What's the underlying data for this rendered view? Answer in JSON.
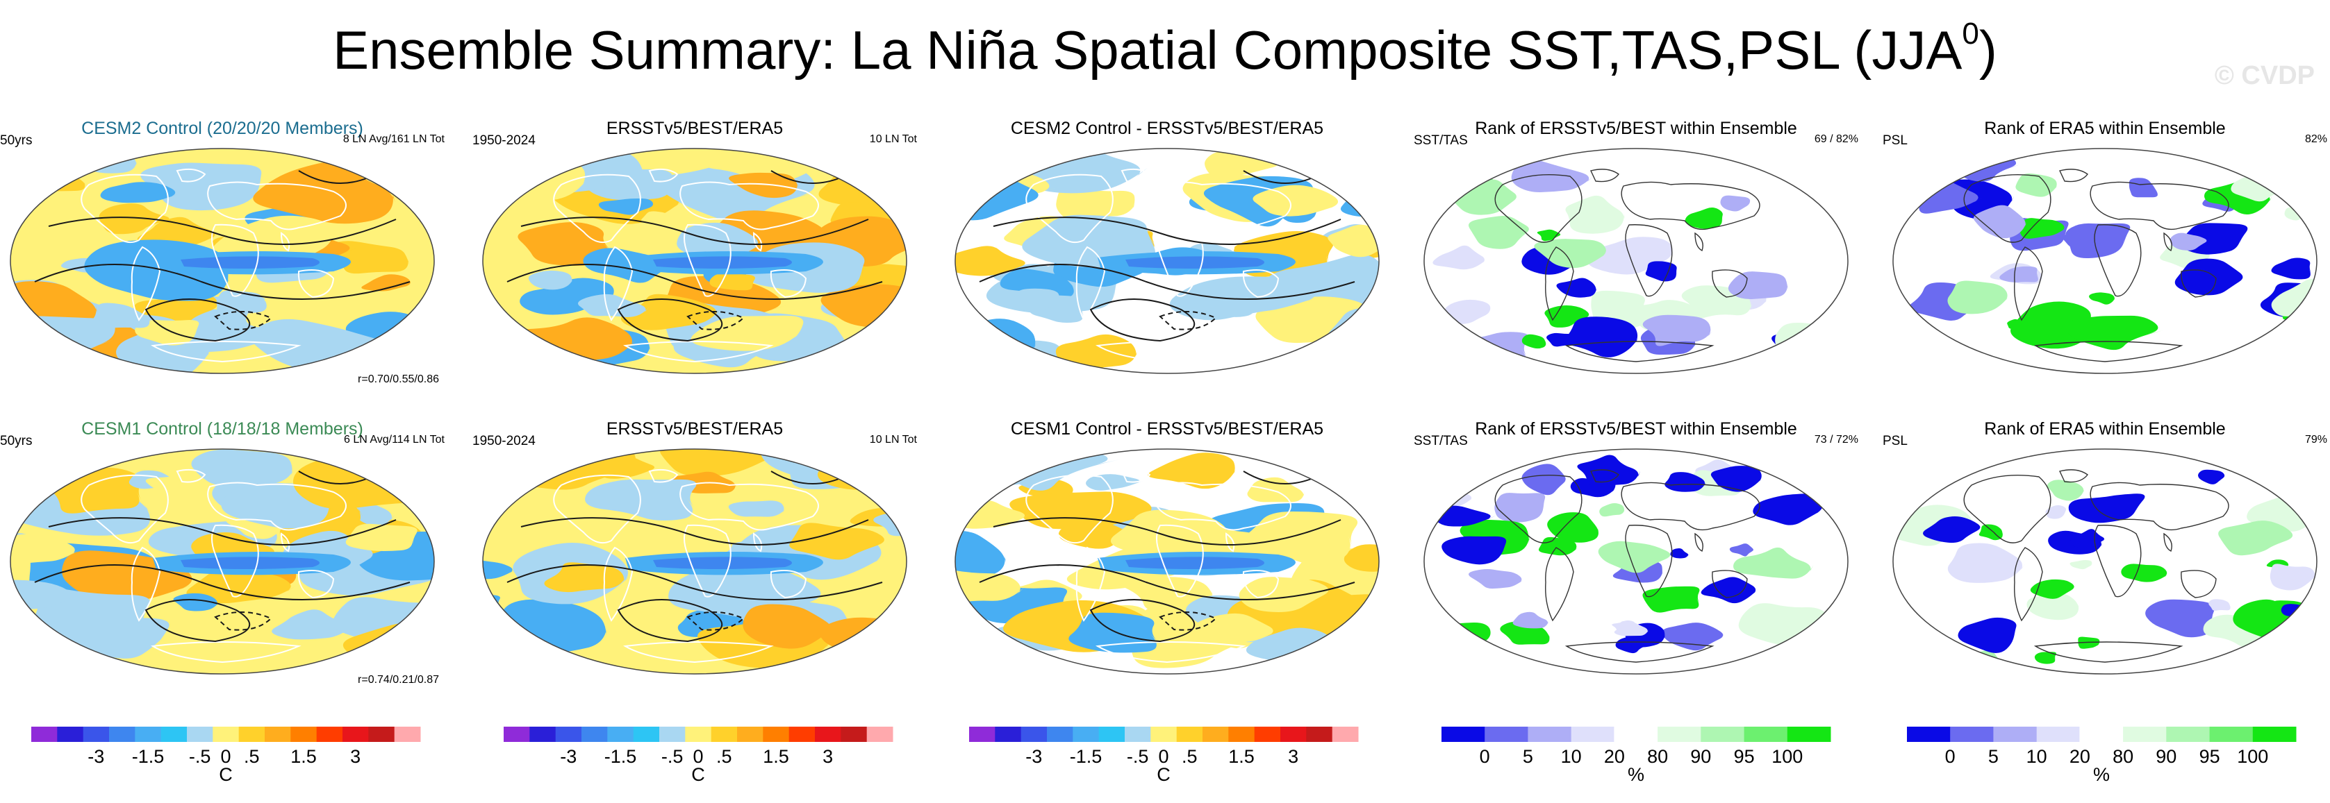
{
  "title": {
    "text": "Ensemble Summary: La Niña Spatial Composite SST,TAS,PSL (JJA",
    "sup": "0",
    "close": ")"
  },
  "watermark": "© CVDP",
  "rows": [
    {
      "panels": [
        {
          "kind": "anom",
          "title": "CESM2 Control (20/20/20 Members)",
          "title_style": "cesm2",
          "left": "50yrs",
          "right": "8 LN Avg/161 LN Tot",
          "corr": "r=0.70/0.55/0.86",
          "seed": 11
        },
        {
          "kind": "anom",
          "title": "ERSSTv5/BEST/ERA5",
          "title_style": "plain",
          "left": "1950-2024",
          "right": "10 LN Tot",
          "corr": "",
          "seed": 23
        },
        {
          "kind": "diff",
          "title": "CESM2 Control - ERSSTv5/BEST/ERA5",
          "title_style": "plain",
          "left": "",
          "right": "",
          "corr": "",
          "seed": 37
        },
        {
          "kind": "rank",
          "title": "Rank of ERSSTv5/BEST within Ensemble",
          "title_style": "plain",
          "left": "SST/TAS",
          "right": "69 /  82%",
          "corr": "",
          "seed": 41
        },
        {
          "kind": "rank",
          "title": "Rank of ERA5 within Ensemble",
          "title_style": "plain",
          "left": "PSL",
          "right": "82%",
          "corr": "",
          "seed": 53
        }
      ]
    },
    {
      "panels": [
        {
          "kind": "anom",
          "title": "CESM1 Control (18/18/18 Members)",
          "title_style": "cesm1",
          "left": "50yrs",
          "right": "6 LN Avg/114 LN Tot",
          "corr": "r=0.74/0.21/0.87",
          "seed": 61
        },
        {
          "kind": "anom",
          "title": "ERSSTv5/BEST/ERA5",
          "title_style": "plain",
          "left": "1950-2024",
          "right": "10 LN Tot",
          "corr": "",
          "seed": 73
        },
        {
          "kind": "diff",
          "title": "CESM1 Control - ERSSTv5/BEST/ERA5",
          "title_style": "plain",
          "left": "",
          "right": "",
          "corr": "",
          "seed": 89
        },
        {
          "kind": "rank",
          "title": "Rank of ERSSTv5/BEST within Ensemble",
          "title_style": "plain",
          "left": "SST/TAS",
          "right": "73 /  72%",
          "corr": "",
          "seed": 97
        },
        {
          "kind": "rank",
          "title": "Rank of ERA5 within Ensemble",
          "title_style": "plain",
          "left": "PSL",
          "right": "79%",
          "corr": "",
          "seed": 101
        }
      ]
    }
  ],
  "colorbars": {
    "anomaly": {
      "colors": [
        "#8f2bd9",
        "#2a1fd8",
        "#3a55ea",
        "#3e86ef",
        "#48aef3",
        "#2dc5f4",
        "#a9d7f2",
        "#fff27a",
        "#ffd12b",
        "#ffad1e",
        "#ff7f00",
        "#ff3d00",
        "#e8161b",
        "#c51b1b",
        "#ffa9ad"
      ],
      "labels": [
        "-3",
        "-1.5",
        "-.5",
        "0",
        ".5",
        "1.5",
        "3"
      ],
      "label_positions": [
        2.5,
        4.5,
        6.5,
        7.5,
        8.5,
        10.5,
        12.5
      ],
      "units": "C"
    },
    "rank": {
      "colors": [
        "#0a0ae6",
        "#6b6bf0",
        "#aeaef6",
        "#dfe0fb",
        "#ffffff",
        "#e0fbe1",
        "#aef6b2",
        "#6cf06f",
        "#14e614"
      ],
      "labels": [
        "0",
        "5",
        "10",
        "20",
        "80",
        "90",
        "95",
        "100"
      ],
      "label_positions": [
        1,
        2,
        3,
        4,
        5,
        6,
        7,
        8
      ],
      "units": "%"
    }
  },
  "chart_data": {
    "type": "heatmap",
    "description_levels": {
      "anomaly_levels_C": [
        -3,
        -1.5,
        -0.5,
        0,
        0.5,
        1.5,
        3
      ],
      "rank_levels_pct": [
        0,
        5,
        10,
        20,
        80,
        90,
        95,
        100
      ]
    },
    "panels": [
      {
        "row": 1,
        "title": "CESM2 Control (20/20/20 Members)",
        "members_note": "8 LN Avg/161 LN Tot",
        "pattern_correlation": [
          0.7,
          0.55,
          0.86
        ]
      },
      {
        "row": 1,
        "title": "ERSSTv5/BEST/ERA5",
        "period": "1950-2024",
        "count_note": "10 LN Tot"
      },
      {
        "row": 1,
        "title": "CESM2 Control - ERSSTv5/BEST/ERA5"
      },
      {
        "row": 1,
        "title": "Rank of ERSSTv5/BEST within Ensemble",
        "rank_pct": [
          69,
          82
        ]
      },
      {
        "row": 1,
        "title": "Rank of ERA5 within Ensemble",
        "rank_pct": [
          82
        ]
      },
      {
        "row": 2,
        "title": "CESM1 Control (18/18/18 Members)",
        "members_note": "6 LN Avg/114 LN Tot",
        "pattern_correlation": [
          0.74,
          0.21,
          0.87
        ]
      },
      {
        "row": 2,
        "title": "ERSSTv5/BEST/ERA5",
        "period": "1950-2024",
        "count_note": "10 LN Tot"
      },
      {
        "row": 2,
        "title": "CESM1 Control - ERSSTv5/BEST/ERA5"
      },
      {
        "row": 2,
        "title": "Rank of ERSSTv5/BEST within Ensemble",
        "rank_pct": [
          73,
          72
        ]
      },
      {
        "row": 2,
        "title": "Rank of ERA5 within Ensemble",
        "rank_pct": [
          79
        ]
      }
    ]
  }
}
